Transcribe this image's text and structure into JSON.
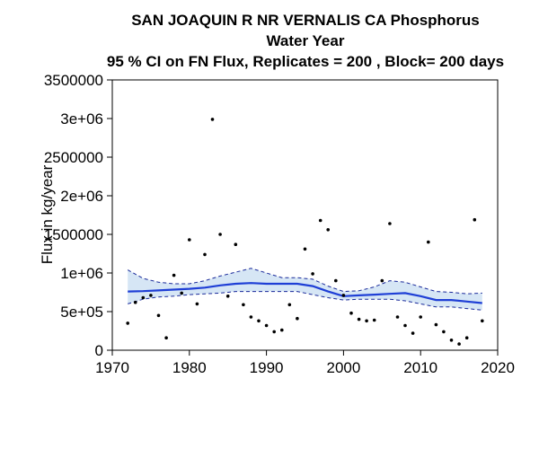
{
  "chart_data": {
    "type": "scatter",
    "title_lines": [
      "SAN JOAQUIN R NR VERNALIS CA   Phosphorus",
      "Water Year",
      "95 % CI on FN Flux, Replicates = 200 , Block= 200 days"
    ],
    "xlabel": "",
    "ylabel": "Flux in kg/year",
    "xlim": [
      1970,
      2020
    ],
    "ylim": [
      0,
      3500000
    ],
    "x_ticks": [
      1970,
      1980,
      1990,
      2000,
      2010,
      2020
    ],
    "x_tick_labels": [
      "1970",
      "1980",
      "1990",
      "2000",
      "2010",
      "2020"
    ],
    "y_ticks": [
      0,
      500000,
      1000000,
      1500000,
      2000000,
      2500000,
      3000000,
      3500000
    ],
    "y_tick_labels": [
      "0",
      "5e+05",
      "1e+06",
      "1500000",
      "2e+06",
      "2500000",
      "3e+06",
      "3500000"
    ],
    "grid": false,
    "colors": {
      "points": "#000000",
      "trend_line": "#1f3fd6",
      "ci_fill": "#d6e6f5",
      "ci_border": "#1a2a9a"
    },
    "points": {
      "x": [
        1972,
        1973,
        1974,
        1975,
        1976,
        1977,
        1978,
        1979,
        1980,
        1981,
        1982,
        1983,
        1984,
        1985,
        1986,
        1987,
        1988,
        1989,
        1990,
        1991,
        1992,
        1993,
        1994,
        1995,
        1996,
        1997,
        1998,
        1999,
        2000,
        2001,
        2002,
        2003,
        2004,
        2005,
        2006,
        2007,
        2008,
        2009,
        2010,
        2011,
        2012,
        2013,
        2014,
        2015,
        2016,
        2017,
        2018
      ],
      "y": [
        350000,
        620000,
        680000,
        710000,
        450000,
        160000,
        970000,
        740000,
        1430000,
        600000,
        1240000,
        2990000,
        1500000,
        700000,
        1370000,
        590000,
        430000,
        380000,
        320000,
        240000,
        260000,
        590000,
        410000,
        1310000,
        990000,
        1680000,
        1560000,
        900000,
        710000,
        480000,
        400000,
        380000,
        390000,
        900000,
        1640000,
        430000,
        320000,
        220000,
        430000,
        1400000,
        330000,
        240000,
        130000,
        80000,
        160000,
        1690000,
        380000
      ]
    },
    "series": [
      {
        "x": [
          1972,
          1974,
          1976,
          1978,
          1980,
          1982,
          1984,
          1986,
          1988,
          1990,
          1992,
          1994,
          1996,
          1998,
          2000,
          2002,
          2004,
          2006,
          2008,
          2010,
          2012,
          2014,
          2016,
          2018
        ],
        "values": [
          760000,
          765000,
          775000,
          785000,
          795000,
          810000,
          840000,
          860000,
          870000,
          860000,
          860000,
          860000,
          830000,
          760000,
          700000,
          710000,
          720000,
          730000,
          740000,
          700000,
          650000,
          650000,
          630000,
          610000
        ]
      }
    ],
    "ci_upper": [
      1040000,
      930000,
      880000,
      860000,
      860000,
      900000,
      960000,
      1010000,
      1060000,
      1000000,
      940000,
      940000,
      920000,
      830000,
      760000,
      770000,
      820000,
      900000,
      880000,
      820000,
      760000,
      750000,
      730000,
      740000
    ],
    "ci_lower": [
      600000,
      660000,
      690000,
      700000,
      720000,
      730000,
      740000,
      760000,
      760000,
      760000,
      760000,
      760000,
      720000,
      680000,
      650000,
      660000,
      660000,
      660000,
      640000,
      600000,
      560000,
      560000,
      540000,
      520000
    ]
  }
}
